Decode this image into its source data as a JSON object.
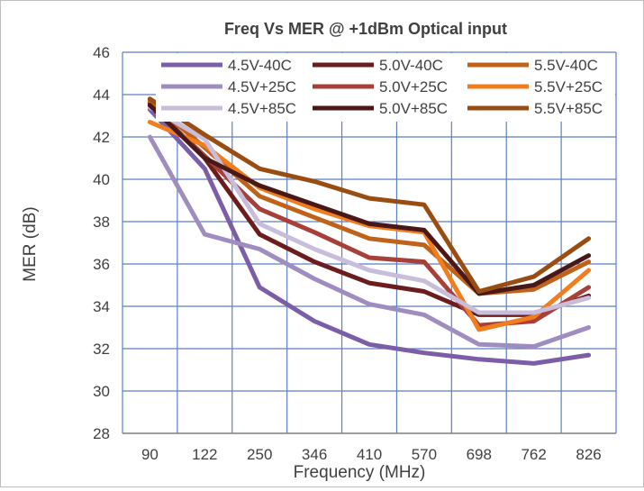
{
  "chart_data": {
    "type": "line",
    "title": "Freq Vs MER @ +1dBm Optical input",
    "xlabel": "Frequency (MHz)",
    "ylabel": "MER (dB)",
    "categories": [
      "90",
      "122",
      "250",
      "346",
      "410",
      "570",
      "698",
      "762",
      "826"
    ],
    "ylim": [
      28,
      46
    ],
    "yticks": [
      28,
      30,
      32,
      34,
      36,
      38,
      40,
      42,
      44,
      46
    ],
    "grid": true,
    "legend_position": "top",
    "series": [
      {
        "name": "4.5V-40C",
        "color": "#7b5ea7",
        "values": [
          43.3,
          40.5,
          34.9,
          33.3,
          32.2,
          31.8,
          31.5,
          31.3,
          31.7
        ]
      },
      {
        "name": "5.0V-40C",
        "color": "#6b1d1d",
        "values": [
          43.6,
          41.0,
          37.4,
          36.1,
          35.1,
          34.7,
          33.6,
          33.6,
          34.5
        ]
      },
      {
        "name": "5.5V-40C",
        "color": "#c0621a",
        "values": [
          43.7,
          41.5,
          39.2,
          38.2,
          37.2,
          36.9,
          34.6,
          34.8,
          36.1
        ]
      },
      {
        "name": "4.5V+25C",
        "color": "#a08dc0",
        "values": [
          42.0,
          37.4,
          36.7,
          35.3,
          34.1,
          33.6,
          32.2,
          32.1,
          33.0
        ]
      },
      {
        "name": "5.0V+25C",
        "color": "#a8403a",
        "values": [
          43.5,
          41.1,
          38.6,
          37.5,
          36.3,
          36.1,
          33.1,
          33.3,
          34.9
        ]
      },
      {
        "name": "5.5V+25C",
        "color": "#f07d1e",
        "values": [
          42.7,
          41.6,
          39.6,
          38.6,
          37.8,
          37.5,
          32.9,
          33.5,
          35.7
        ]
      },
      {
        "name": "4.5V+85C",
        "color": "#c9bddc",
        "values": [
          43.4,
          41.9,
          37.9,
          36.7,
          35.7,
          35.2,
          33.7,
          33.7,
          34.4
        ]
      },
      {
        "name": "5.0V+85C",
        "color": "#4a1818",
        "values": [
          43.5,
          41.0,
          39.7,
          38.8,
          37.9,
          37.6,
          34.6,
          35.0,
          36.4
        ]
      },
      {
        "name": "5.5V+85C",
        "color": "#9a4d10",
        "values": [
          43.8,
          42.1,
          40.5,
          39.9,
          39.1,
          38.8,
          34.7,
          35.4,
          37.2
        ]
      }
    ]
  }
}
